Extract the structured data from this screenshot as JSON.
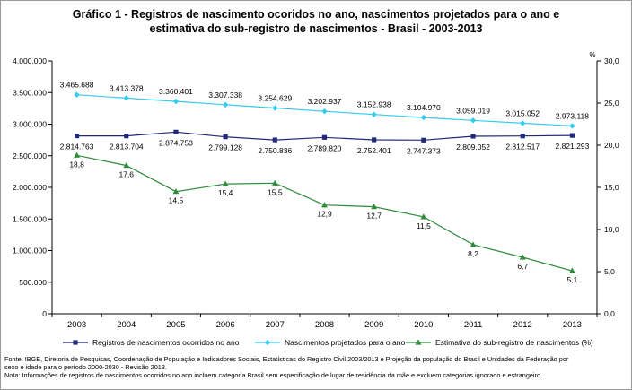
{
  "chart_data": {
    "type": "line",
    "title": "Gráfico 1 - Registros de nascimento ocoridos no ano, nascimentos projetados para o ano e",
    "subtitle": "estimativa do sub-registro de nascimentos - Brasil - 2003-2013",
    "x": [
      "2003",
      "2004",
      "2005",
      "2006",
      "2007",
      "2008",
      "2009",
      "2010",
      "2011",
      "2012",
      "2013"
    ],
    "y_left": {
      "ylim": [
        0,
        4000000
      ],
      "ticks": [
        0,
        500000,
        1000000,
        1500000,
        2000000,
        2500000,
        3000000,
        3500000,
        4000000
      ],
      "tick_labels": [
        "0",
        "500.000",
        "1.000.000",
        "1.500.000",
        "2.000.000",
        "2.500.000",
        "3.000.000",
        "3.500.000",
        "4.000.000"
      ]
    },
    "y_right": {
      "unit_label": "%",
      "ylim": [
        0,
        30
      ],
      "ticks": [
        0,
        5,
        10,
        15,
        20,
        25,
        30
      ],
      "tick_labels": [
        "0,0",
        "5,0",
        "10,0",
        "15,0",
        "20,0",
        "25,0",
        "30,0"
      ]
    },
    "series": [
      {
        "name": "Registros de nascimentos ocorridos no ano",
        "axis": "left",
        "color": "#1f2a7a",
        "marker": "square",
        "values": [
          2814763,
          2813704,
          2874753,
          2799128,
          2750836,
          2789820,
          2752401,
          2747373,
          2809052,
          2812517,
          2821293
        ],
        "labels": [
          "2.814.763",
          "2.813.704",
          "2.874.753",
          "2.799.128",
          "2.750.836",
          "2.789.820",
          "2.752.401",
          "2.747.373",
          "2.809.052",
          "2.812.517",
          "2.821.293"
        ]
      },
      {
        "name": "Nascimentos projetados para o ano",
        "axis": "left",
        "color": "#33ccee",
        "marker": "diamond",
        "values": [
          3465688,
          3413378,
          3360401,
          3307338,
          3254629,
          3202937,
          3152938,
          3104970,
          3059019,
          3015052,
          2973118
        ],
        "labels": [
          "3.465.688",
          "3.413.378",
          "3.360.401",
          "3.307.338",
          "3.254.629",
          "3.202.937",
          "3.152.938",
          "3.104.970",
          "3.059.019",
          "3.015.052",
          "2.973.118"
        ]
      },
      {
        "name": "Estimativa do sub-registro de nascimentos (%)",
        "axis": "right",
        "color": "#2e8b3a",
        "marker": "triangle",
        "values": [
          18.8,
          17.6,
          14.5,
          15.4,
          15.5,
          12.9,
          12.7,
          11.5,
          8.2,
          6.7,
          5.1
        ],
        "labels": [
          "18,8",
          "17,6",
          "14,5",
          "15,4",
          "15,5",
          "12,9",
          "12,7",
          "11,5",
          "8,2",
          "6,7",
          "5,1"
        ]
      }
    ],
    "grid": false,
    "legend_position": "bottom"
  },
  "notes": [
    "Fonte: IBGE, Diretoria de Pesquisas, Coordenação de População e Indicadores Sociais, Estatísticas do Registro Civil 2003/2013 e Projeção da população do Brasil e Unidades da Federação por",
    "sexo e idade para o período 2000-2030 - Revisão 2013.",
    "Nota: Informações de registros de nascimentos ocorridos no ano incluem categoria Brasil sem especificação de lugar de residência da mãe e excluem categorias ignorado e estrangeiro."
  ]
}
